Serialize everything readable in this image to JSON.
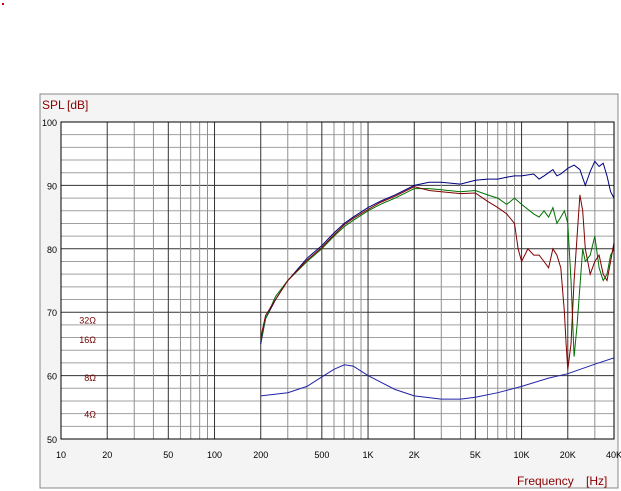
{
  "chart_data": {
    "type": "line",
    "ylabel_parts": [
      "SPL",
      "[dB]"
    ],
    "xlabel_parts": [
      "Frequency",
      "[Hz]"
    ],
    "xscale": "log",
    "xlim": [
      10,
      40000
    ],
    "ylim": [
      50,
      100
    ],
    "grid": true,
    "xticks": [
      {
        "v": 10,
        "label": "10"
      },
      {
        "v": 20,
        "label": "20"
      },
      {
        "v": 50,
        "label": "50"
      },
      {
        "v": 100,
        "label": "100"
      },
      {
        "v": 200,
        "label": "200"
      },
      {
        "v": 500,
        "label": "500"
      },
      {
        "v": 1000,
        "label": "1K"
      },
      {
        "v": 2000,
        "label": "2K"
      },
      {
        "v": 5000,
        "label": "5K"
      },
      {
        "v": 10000,
        "label": "10K"
      },
      {
        "v": 20000,
        "label": "20K"
      },
      {
        "v": 40000,
        "label": "40K"
      }
    ],
    "yticks": [
      {
        "v": 50,
        "label": "50"
      },
      {
        "v": 60,
        "label": "60"
      },
      {
        "v": 70,
        "label": "70"
      },
      {
        "v": 80,
        "label": "80"
      },
      {
        "v": 90,
        "label": "90"
      },
      {
        "v": 100,
        "label": "100"
      }
    ],
    "impedance_labels": [
      {
        "label": "32Ω",
        "db": 68.7
      },
      {
        "label": "16Ω",
        "db": 65.6
      },
      {
        "label": "8Ω",
        "db": 59.6
      },
      {
        "label": "4Ω",
        "db": 53.9
      }
    ],
    "series": [
      {
        "color": "#000080",
        "x": [
          200,
          215,
          250,
          300,
          400,
          500,
          600,
          700,
          800,
          1000,
          1200,
          1500,
          2000,
          2500,
          3000,
          4000,
          5000,
          6000,
          7000,
          8000,
          9000,
          10000,
          12000,
          13000,
          14000,
          16000,
          17000,
          18000,
          20000,
          22000,
          24000,
          26000,
          28000,
          30000,
          32000,
          34000,
          36000,
          38000,
          40000
        ],
        "y": [
          65,
          69,
          72,
          75,
          78.5,
          80.5,
          82.5,
          84,
          85,
          86.5,
          87.5,
          88.5,
          90,
          90.5,
          90.5,
          90.2,
          90.8,
          91,
          91,
          91.3,
          91.5,
          91.5,
          91.8,
          91,
          91.5,
          92.5,
          91.5,
          91.8,
          92.7,
          93.2,
          92.5,
          90,
          92.2,
          93.8,
          93,
          93.5,
          91.5,
          89,
          88
        ]
      },
      {
        "color": "#007000",
        "x": [
          200,
          215,
          250,
          300,
          400,
          500,
          600,
          700,
          800,
          1000,
          1200,
          1500,
          2000,
          2500,
          3000,
          4000,
          5000,
          6000,
          7000,
          8000,
          9000,
          10000,
          12000,
          13000,
          14000,
          15000,
          16000,
          17000,
          18000,
          19000,
          20000,
          21000,
          22000,
          23000,
          24000,
          25000,
          26000,
          28000,
          30000,
          32000,
          34000,
          36000,
          38000,
          40000
        ],
        "y": [
          65.5,
          69,
          72.5,
          75,
          78,
          80,
          82,
          83.5,
          84.5,
          86,
          87,
          88,
          89.5,
          89.5,
          89.3,
          89,
          89.2,
          88.5,
          88,
          87,
          88,
          87,
          85.5,
          85,
          86,
          85,
          86.5,
          84,
          85,
          86,
          84,
          75,
          63,
          68,
          74,
          80,
          78,
          79,
          82,
          77,
          75,
          76,
          79,
          80
        ]
      },
      {
        "color": "#800000",
        "x": [
          200,
          215,
          250,
          300,
          400,
          500,
          600,
          700,
          800,
          1000,
          1200,
          1500,
          2000,
          2500,
          3000,
          4000,
          5000,
          6000,
          7000,
          8000,
          9000,
          9500,
          10000,
          11000,
          12000,
          13000,
          14000,
          15000,
          16000,
          17000,
          18000,
          19000,
          19500,
          20000,
          21000,
          22000,
          23000,
          24000,
          25000,
          26000,
          28000,
          30000,
          32000,
          34000,
          36000,
          38000,
          40000
        ],
        "y": [
          66,
          69.5,
          72,
          75,
          78.2,
          80.2,
          82.2,
          83.8,
          84.8,
          86.2,
          87.3,
          88.3,
          89.8,
          89.2,
          89,
          88.7,
          88.8,
          87.5,
          86.5,
          85.5,
          84,
          80,
          78,
          80,
          79,
          79,
          78,
          77,
          80,
          79,
          77,
          70,
          65,
          61,
          65,
          75,
          82,
          88.5,
          86,
          80,
          76,
          78,
          79,
          76,
          75,
          78,
          81
        ]
      },
      {
        "color": "#2222aa",
        "x": [
          200,
          300,
          400,
          500,
          600,
          700,
          800,
          1000,
          1500,
          2000,
          3000,
          4000,
          5000,
          7000,
          10000,
          15000,
          20000,
          30000,
          40000
        ],
        "y": [
          56.8,
          57.3,
          58.3,
          59.8,
          61,
          61.7,
          61.5,
          60,
          57.8,
          56.8,
          56.3,
          56.3,
          56.6,
          57.3,
          58.3,
          59.6,
          60.3,
          61.8,
          62.8
        ]
      }
    ]
  }
}
